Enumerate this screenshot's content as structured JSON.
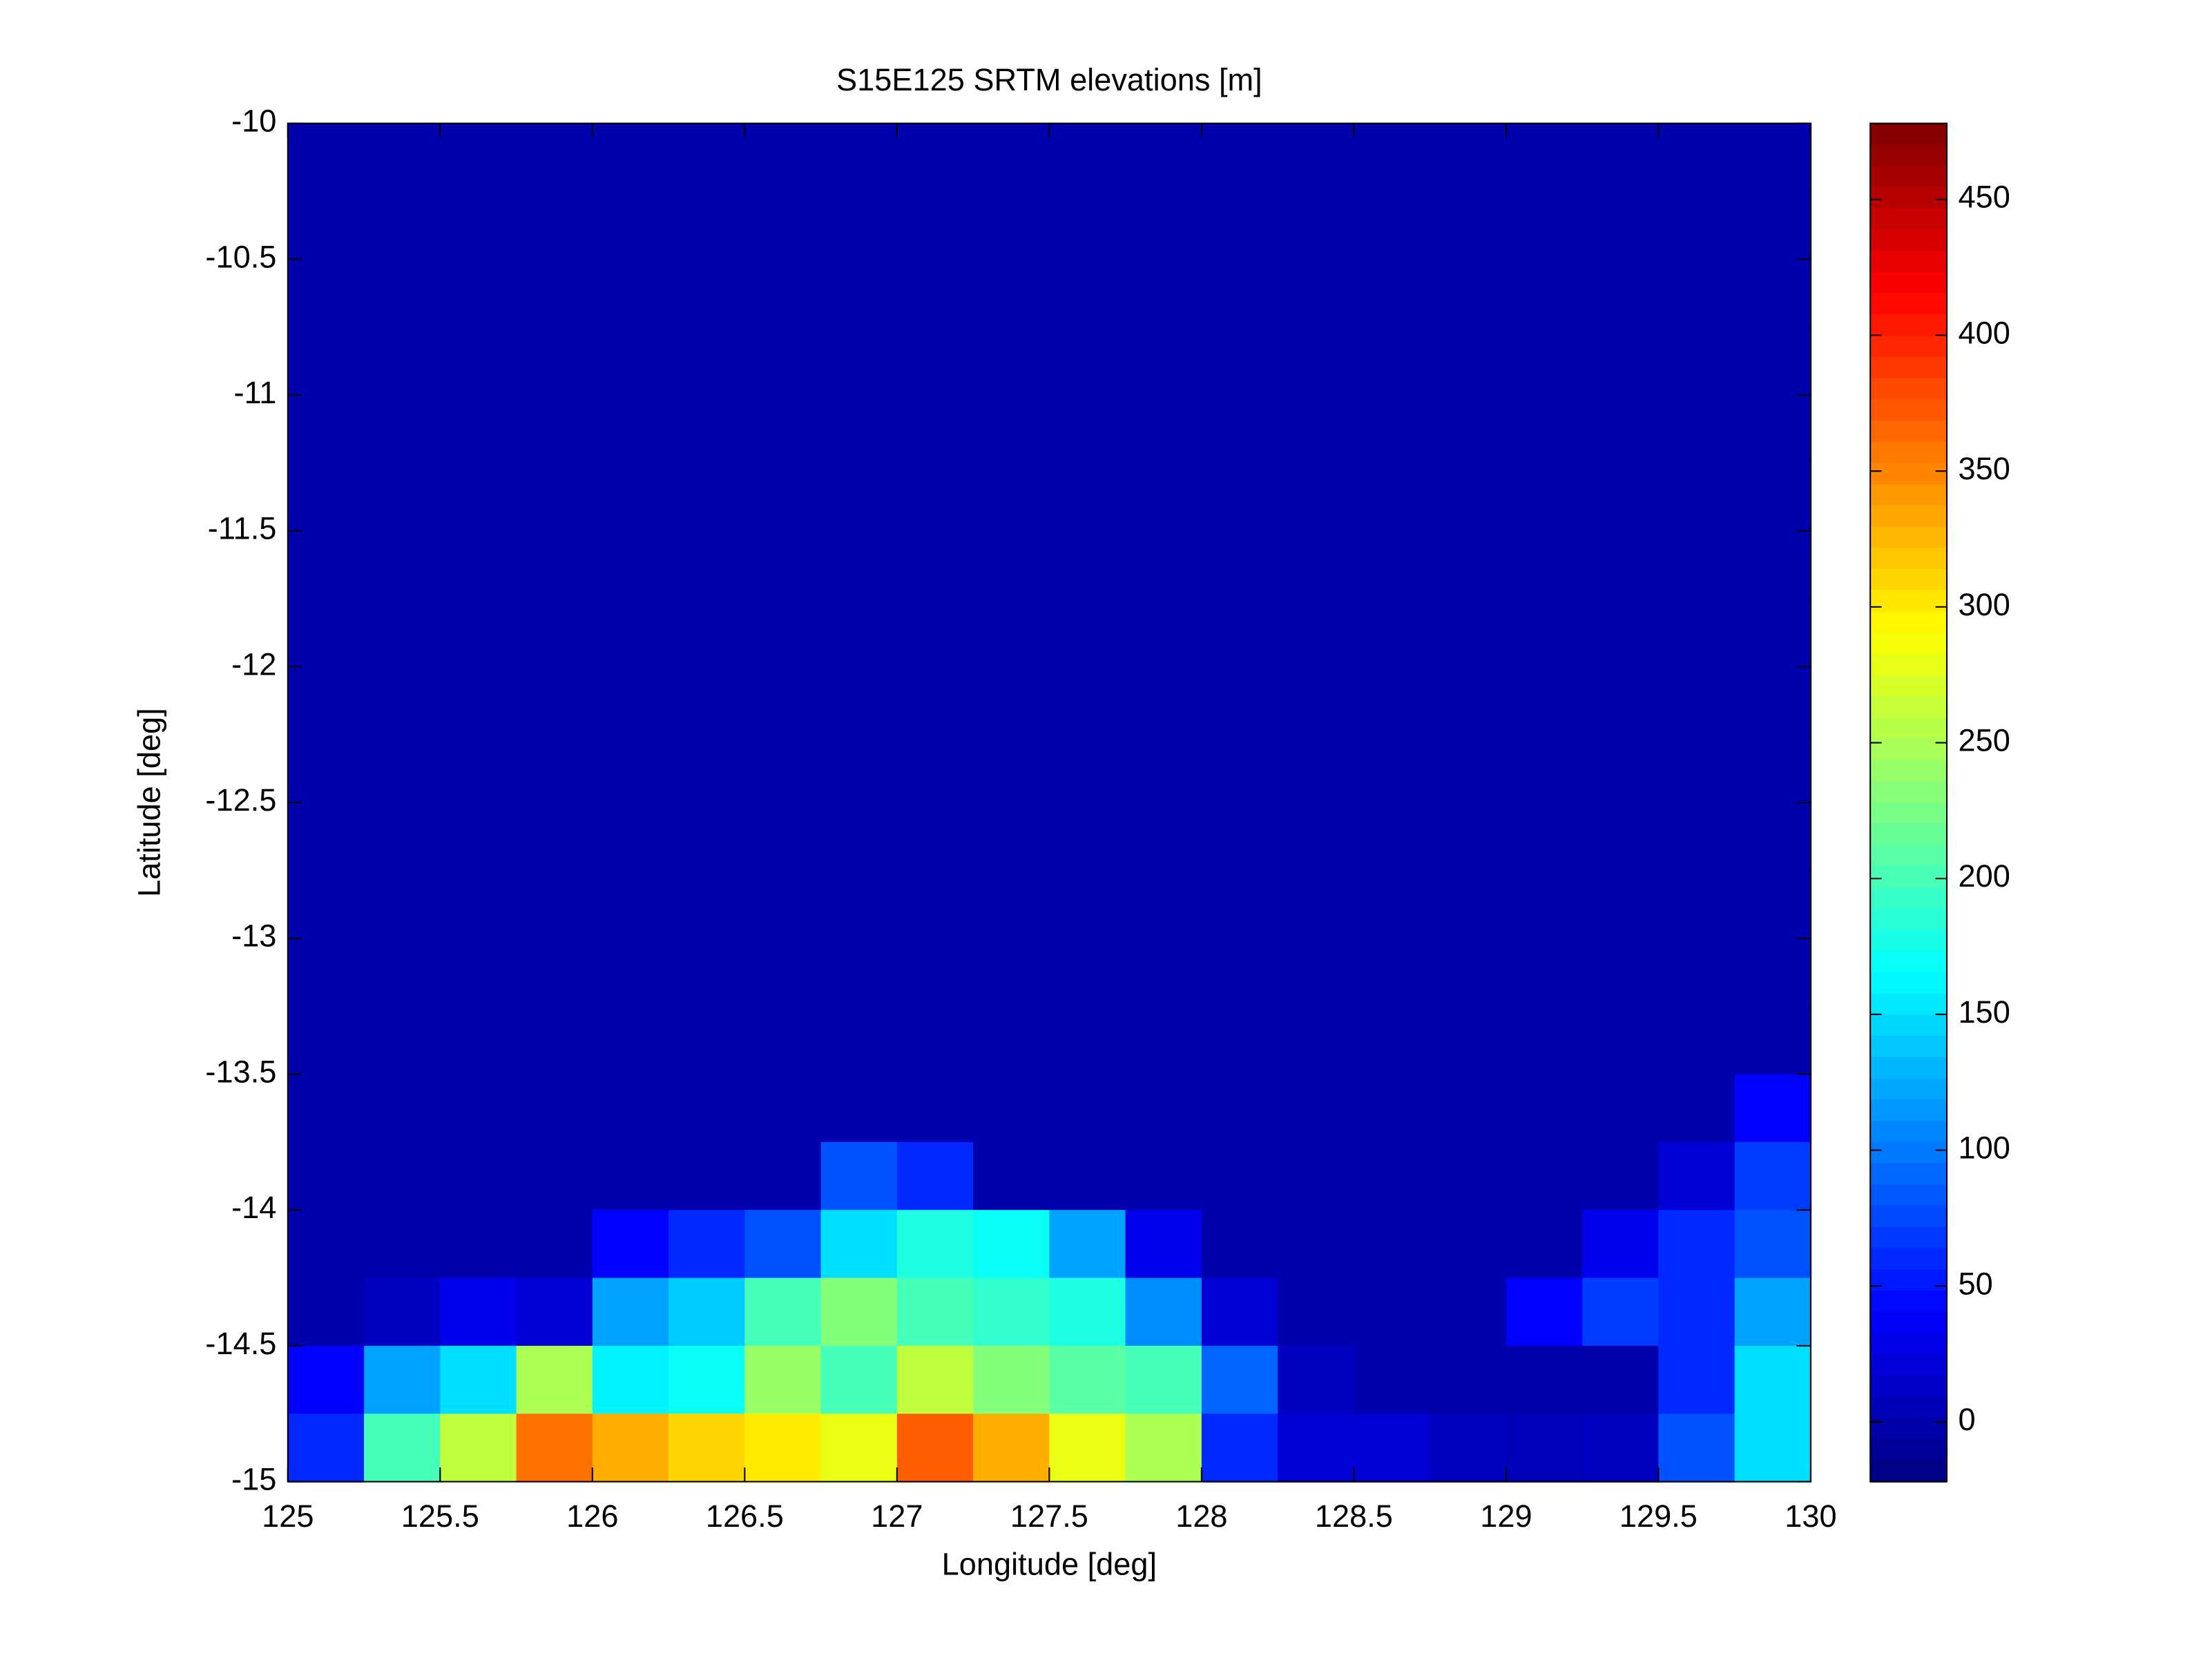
{
  "chart_data": {
    "type": "heatmap",
    "title": "S15E125 SRTM elevations [m]",
    "xlabel": "Longitude [deg]",
    "ylabel": "Latitude [deg]",
    "x": [
      125.125,
      125.375,
      125.625,
      125.875,
      126.125,
      126.375,
      126.625,
      126.875,
      127.125,
      127.375,
      127.625,
      127.875,
      128.125,
      128.375,
      128.625,
      128.875,
      129.125,
      129.375,
      129.625,
      129.875
    ],
    "y": [
      -10.125,
      -10.375,
      -10.625,
      -10.875,
      -11.125,
      -11.375,
      -11.625,
      -11.875,
      -12.125,
      -12.375,
      -12.625,
      -12.875,
      -13.125,
      -13.375,
      -13.625,
      -13.875,
      -14.125,
      -14.375,
      -14.625,
      -14.875
    ],
    "z": [
      [
        0,
        0,
        0,
        0,
        0,
        0,
        0,
        0,
        0,
        0,
        0,
        0,
        0,
        0,
        0,
        0,
        0,
        0,
        0,
        0
      ],
      [
        0,
        0,
        0,
        0,
        0,
        0,
        0,
        0,
        0,
        0,
        0,
        0,
        0,
        0,
        0,
        0,
        0,
        0,
        0,
        0
      ],
      [
        0,
        0,
        0,
        0,
        0,
        0,
        0,
        0,
        0,
        0,
        0,
        0,
        0,
        0,
        0,
        0,
        0,
        0,
        0,
        0
      ],
      [
        0,
        0,
        0,
        0,
        0,
        0,
        0,
        0,
        0,
        0,
        0,
        0,
        0,
        0,
        0,
        0,
        0,
        0,
        0,
        0
      ],
      [
        0,
        0,
        0,
        0,
        0,
        0,
        0,
        0,
        0,
        0,
        0,
        0,
        0,
        0,
        0,
        0,
        0,
        0,
        0,
        0
      ],
      [
        0,
        0,
        0,
        0,
        0,
        0,
        0,
        0,
        0,
        0,
        0,
        0,
        0,
        0,
        0,
        0,
        0,
        0,
        0,
        0
      ],
      [
        0,
        0,
        0,
        0,
        0,
        0,
        0,
        0,
        0,
        0,
        0,
        0,
        0,
        0,
        0,
        0,
        0,
        0,
        0,
        0
      ],
      [
        0,
        0,
        0,
        0,
        0,
        0,
        0,
        0,
        0,
        0,
        0,
        0,
        0,
        0,
        0,
        0,
        0,
        0,
        0,
        0
      ],
      [
        0,
        0,
        0,
        0,
        0,
        0,
        0,
        0,
        0,
        0,
        0,
        0,
        0,
        0,
        0,
        0,
        0,
        0,
        0,
        0
      ],
      [
        0,
        0,
        0,
        0,
        0,
        0,
        0,
        0,
        0,
        0,
        0,
        0,
        0,
        0,
        0,
        0,
        0,
        0,
        0,
        0
      ],
      [
        0,
        0,
        0,
        0,
        0,
        0,
        0,
        0,
        0,
        0,
        0,
        0,
        0,
        0,
        0,
        0,
        0,
        0,
        0,
        0
      ],
      [
        0,
        0,
        0,
        0,
        0,
        0,
        0,
        0,
        0,
        0,
        0,
        0,
        0,
        0,
        0,
        0,
        0,
        0,
        0,
        0
      ],
      [
        0,
        0,
        0,
        0,
        0,
        0,
        0,
        0,
        0,
        0,
        0,
        0,
        0,
        0,
        0,
        0,
        0,
        0,
        0,
        0
      ],
      [
        0,
        0,
        0,
        0,
        0,
        0,
        0,
        0,
        0,
        0,
        0,
        0,
        0,
        0,
        0,
        0,
        0,
        0,
        0,
        0
      ],
      [
        0,
        0,
        0,
        0,
        0,
        0,
        0,
        0,
        0,
        0,
        0,
        0,
        0,
        0,
        0,
        0,
        0,
        0,
        0,
        40
      ],
      [
        0,
        0,
        0,
        0,
        0,
        0,
        0,
        80,
        60,
        0,
        0,
        0,
        0,
        0,
        0,
        0,
        0,
        0,
        20,
        70
      ],
      [
        0,
        0,
        0,
        0,
        40,
        60,
        80,
        150,
        180,
        170,
        120,
        30,
        0,
        0,
        0,
        0,
        0,
        30,
        60,
        80
      ],
      [
        0,
        10,
        30,
        20,
        120,
        140,
        200,
        230,
        200,
        190,
        180,
        110,
        20,
        0,
        0,
        0,
        40,
        70,
        60,
        120
      ],
      [
        40,
        120,
        150,
        250,
        160,
        170,
        240,
        200,
        260,
        230,
        210,
        200,
        90,
        10,
        0,
        0,
        0,
        0,
        60,
        150
      ],
      [
        60,
        200,
        260,
        360,
        330,
        310,
        300,
        280,
        370,
        330,
        280,
        250,
        60,
        20,
        20,
        10,
        5,
        10,
        80,
        150
      ]
    ],
    "xlim": [
      125,
      130
    ],
    "ylim": [
      -15,
      -10
    ],
    "xticks": [
      125,
      125.5,
      126,
      126.5,
      127,
      127.5,
      128,
      128.5,
      129,
      129.5,
      130
    ],
    "yticks": [
      -10,
      -10.5,
      -11,
      -11.5,
      -12,
      -12.5,
      -13,
      -13.5,
      -14,
      -14.5,
      -15
    ],
    "clim": [
      -22,
      478
    ],
    "colorbar_ticks": [
      0,
      50,
      100,
      150,
      200,
      250,
      300,
      350,
      400,
      450
    ],
    "colormap": "jet"
  }
}
